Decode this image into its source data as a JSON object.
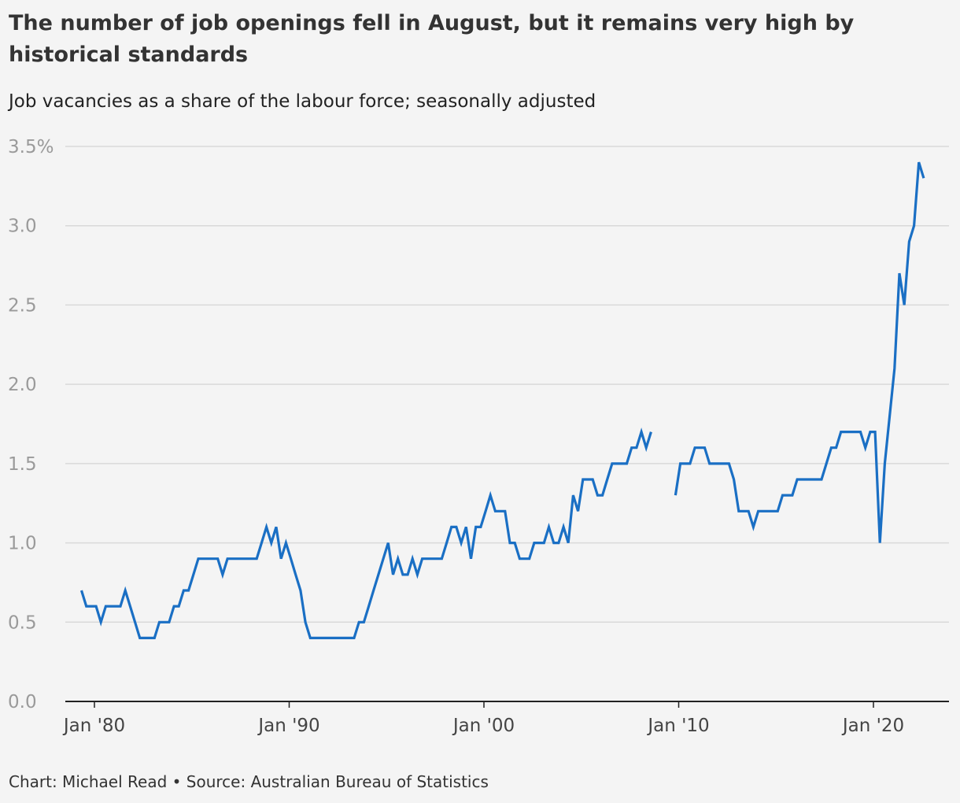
{
  "title": "The number of job openings fell in August, but it remains very high by historical standards",
  "subtitle": "Job vacancies as a share of the labour force; seasonally adjusted",
  "footer": "Chart: Michael Read • Source: Australian Bureau of Statistics",
  "colors": {
    "line": "#1a6fc4",
    "grid": "#d9d9d9",
    "axis": "#222222",
    "background": "#f4f4f4"
  },
  "chart_data": {
    "type": "line",
    "title": "The number of job openings fell in August, but it remains very high by historical standards",
    "subtitle": "Job vacancies as a share of the labour force; seasonally adjusted",
    "xlabel": "",
    "ylabel": "",
    "grid": true,
    "ylim": [
      0,
      3.5
    ],
    "xlim": [
      "1979-05",
      "2022-08"
    ],
    "y_ticks": [
      0,
      0.5,
      1.0,
      1.5,
      2.0,
      2.5,
      3.0,
      3.5
    ],
    "y_tick_labels": [
      "0.0",
      "0.5",
      "1.0",
      "1.5",
      "2.0",
      "2.5",
      "3.0",
      "3.5%"
    ],
    "x_ticks": [
      "1980-01",
      "1990-01",
      "2000-01",
      "2010-01",
      "2020-01"
    ],
    "x_tick_labels": [
      "Jan '80",
      "Jan '90",
      "Jan '00",
      "Jan '10",
      "Jan '20"
    ],
    "series": [
      {
        "values": [
          [
            "1979-05",
            0.7
          ],
          [
            "1979-08",
            0.6
          ],
          [
            "1979-11",
            0.6
          ],
          [
            "1980-02",
            0.6
          ],
          [
            "1980-05",
            0.5
          ],
          [
            "1980-08",
            0.6
          ],
          [
            "1980-11",
            0.6
          ],
          [
            "1981-02",
            0.6
          ],
          [
            "1981-05",
            0.6
          ],
          [
            "1981-08",
            0.7
          ],
          [
            "1981-11",
            0.6
          ],
          [
            "1982-02",
            0.5
          ],
          [
            "1982-05",
            0.4
          ],
          [
            "1982-08",
            0.4
          ],
          [
            "1982-11",
            0.4
          ],
          [
            "1983-02",
            0.4
          ],
          [
            "1983-05",
            0.5
          ],
          [
            "1983-08",
            0.5
          ],
          [
            "1983-11",
            0.5
          ],
          [
            "1984-02",
            0.6
          ],
          [
            "1984-05",
            0.6
          ],
          [
            "1984-08",
            0.7
          ],
          [
            "1984-11",
            0.7
          ],
          [
            "1985-02",
            0.8
          ],
          [
            "1985-05",
            0.9
          ],
          [
            "1985-08",
            0.9
          ],
          [
            "1985-11",
            0.9
          ],
          [
            "1986-02",
            0.9
          ],
          [
            "1986-05",
            0.9
          ],
          [
            "1986-08",
            0.8
          ],
          [
            "1986-11",
            0.9
          ],
          [
            "1987-02",
            0.9
          ],
          [
            "1987-05",
            0.9
          ],
          [
            "1987-08",
            0.9
          ],
          [
            "1987-11",
            0.9
          ],
          [
            "1988-02",
            0.9
          ],
          [
            "1988-05",
            0.9
          ],
          [
            "1988-08",
            1.0
          ],
          [
            "1988-11",
            1.1
          ],
          [
            "1989-02",
            1.0
          ],
          [
            "1989-05",
            1.1
          ],
          [
            "1989-08",
            0.9
          ],
          [
            "1989-11",
            1.0
          ],
          [
            "1990-02",
            0.9
          ],
          [
            "1990-05",
            0.8
          ],
          [
            "1990-08",
            0.7
          ],
          [
            "1990-11",
            0.5
          ],
          [
            "1991-02",
            0.4
          ],
          [
            "1991-05",
            0.4
          ],
          [
            "1991-08",
            0.4
          ],
          [
            "1991-11",
            0.4
          ],
          [
            "1992-02",
            0.4
          ],
          [
            "1992-05",
            0.4
          ],
          [
            "1992-08",
            0.4
          ],
          [
            "1992-11",
            0.4
          ],
          [
            "1993-02",
            0.4
          ],
          [
            "1993-05",
            0.4
          ],
          [
            "1993-08",
            0.5
          ],
          [
            "1993-11",
            0.5
          ],
          [
            "1994-02",
            0.6
          ],
          [
            "1994-05",
            0.7
          ],
          [
            "1994-08",
            0.8
          ],
          [
            "1994-11",
            0.9
          ],
          [
            "1995-02",
            1.0
          ],
          [
            "1995-05",
            0.8
          ],
          [
            "1995-08",
            0.9
          ],
          [
            "1995-11",
            0.8
          ],
          [
            "1996-02",
            0.8
          ],
          [
            "1996-05",
            0.9
          ],
          [
            "1996-08",
            0.8
          ],
          [
            "1996-11",
            0.9
          ],
          [
            "1997-02",
            0.9
          ],
          [
            "1997-05",
            0.9
          ],
          [
            "1997-08",
            0.9
          ],
          [
            "1997-11",
            0.9
          ],
          [
            "1998-02",
            1.0
          ],
          [
            "1998-05",
            1.1
          ],
          [
            "1998-08",
            1.1
          ],
          [
            "1998-11",
            1.0
          ],
          [
            "1999-02",
            1.1
          ],
          [
            "1999-05",
            0.9
          ],
          [
            "1999-08",
            1.1
          ],
          [
            "1999-11",
            1.1
          ],
          [
            "2000-02",
            1.2
          ],
          [
            "2000-05",
            1.3
          ],
          [
            "2000-08",
            1.2
          ],
          [
            "2000-11",
            1.2
          ],
          [
            "2001-02",
            1.2
          ],
          [
            "2001-05",
            1.0
          ],
          [
            "2001-08",
            1.0
          ],
          [
            "2001-11",
            0.9
          ],
          [
            "2002-02",
            0.9
          ],
          [
            "2002-05",
            0.9
          ],
          [
            "2002-08",
            1.0
          ],
          [
            "2002-11",
            1.0
          ],
          [
            "2003-02",
            1.0
          ],
          [
            "2003-05",
            1.1
          ],
          [
            "2003-08",
            1.0
          ],
          [
            "2003-11",
            1.0
          ],
          [
            "2004-02",
            1.1
          ],
          [
            "2004-05",
            1.0
          ],
          [
            "2004-08",
            1.3
          ],
          [
            "2004-11",
            1.2
          ],
          [
            "2005-02",
            1.4
          ],
          [
            "2005-05",
            1.4
          ],
          [
            "2005-08",
            1.4
          ],
          [
            "2005-11",
            1.3
          ],
          [
            "2006-02",
            1.3
          ],
          [
            "2006-05",
            1.4
          ],
          [
            "2006-08",
            1.5
          ],
          [
            "2006-11",
            1.5
          ],
          [
            "2007-02",
            1.5
          ],
          [
            "2007-05",
            1.5
          ],
          [
            "2007-08",
            1.6
          ],
          [
            "2007-11",
            1.6
          ],
          [
            "2008-02",
            1.7
          ],
          [
            "2008-05",
            1.6
          ],
          [
            "2008-08",
            1.7
          ],
          null,
          [
            "2009-11",
            1.3
          ],
          [
            "2010-02",
            1.5
          ],
          [
            "2010-05",
            1.5
          ],
          [
            "2010-08",
            1.5
          ],
          [
            "2010-11",
            1.6
          ],
          [
            "2011-02",
            1.6
          ],
          [
            "2011-05",
            1.6
          ],
          [
            "2011-08",
            1.5
          ],
          [
            "2011-11",
            1.5
          ],
          [
            "2012-02",
            1.5
          ],
          [
            "2012-05",
            1.5
          ],
          [
            "2012-08",
            1.5
          ],
          [
            "2012-11",
            1.4
          ],
          [
            "2013-02",
            1.2
          ],
          [
            "2013-05",
            1.2
          ],
          [
            "2013-08",
            1.2
          ],
          [
            "2013-11",
            1.1
          ],
          [
            "2014-02",
            1.2
          ],
          [
            "2014-05",
            1.2
          ],
          [
            "2014-08",
            1.2
          ],
          [
            "2014-11",
            1.2
          ],
          [
            "2015-02",
            1.2
          ],
          [
            "2015-05",
            1.3
          ],
          [
            "2015-08",
            1.3
          ],
          [
            "2015-11",
            1.3
          ],
          [
            "2016-02",
            1.4
          ],
          [
            "2016-05",
            1.4
          ],
          [
            "2016-08",
            1.4
          ],
          [
            "2016-11",
            1.4
          ],
          [
            "2017-02",
            1.4
          ],
          [
            "2017-05",
            1.4
          ],
          [
            "2017-08",
            1.5
          ],
          [
            "2017-11",
            1.6
          ],
          [
            "2018-02",
            1.6
          ],
          [
            "2018-05",
            1.7
          ],
          [
            "2018-08",
            1.7
          ],
          [
            "2018-11",
            1.7
          ],
          [
            "2019-02",
            1.7
          ],
          [
            "2019-05",
            1.7
          ],
          [
            "2019-08",
            1.6
          ],
          [
            "2019-11",
            1.7
          ],
          [
            "2020-02",
            1.7
          ],
          [
            "2020-05",
            1.0
          ],
          [
            "2020-08",
            1.5
          ],
          [
            "2020-11",
            1.8
          ],
          [
            "2021-02",
            2.1
          ],
          [
            "2021-05",
            2.7
          ],
          [
            "2021-08",
            2.5
          ],
          [
            "2021-11",
            2.9
          ],
          [
            "2022-02",
            3.0
          ],
          [
            "2022-05",
            3.4
          ],
          [
            "2022-08",
            3.3
          ]
        ]
      }
    ]
  }
}
